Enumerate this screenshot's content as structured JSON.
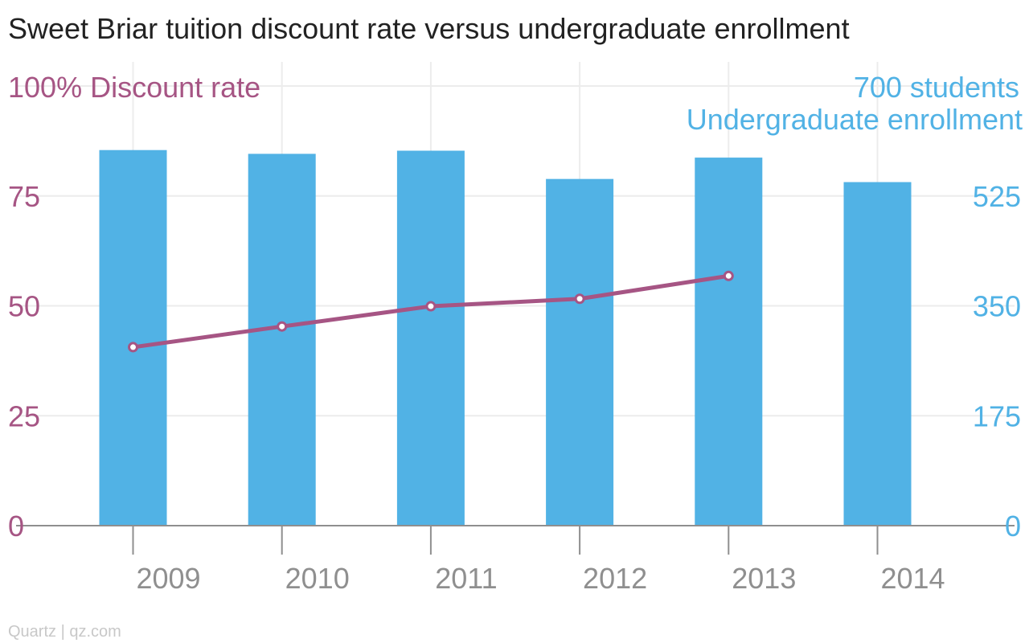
{
  "chart_data": {
    "type": "bar+line",
    "title": "Sweet Briar tuition discount rate versus undergraduate enrollment",
    "categories": [
      "2009",
      "2010",
      "2011",
      "2012",
      "2013",
      "2014"
    ],
    "series": [
      {
        "name": "Undergraduate enrollment",
        "type": "bar",
        "axis": "right",
        "color": "#51b2e5",
        "values": [
          598,
          592,
          597,
          552,
          586,
          547
        ]
      },
      {
        "name": "Discount rate",
        "type": "line",
        "axis": "left",
        "color": "#a65584",
        "values": [
          40.6,
          45.3,
          49.9,
          51.6,
          56.8,
          null
        ]
      }
    ],
    "left_axis": {
      "label": "Discount rate",
      "top_tick": "100%",
      "ticks": [
        "0",
        "25",
        "50",
        "75"
      ],
      "ylim": [
        0,
        100
      ]
    },
    "right_axis": {
      "label": "Undergraduate enrollment",
      "top_tick": "700 students",
      "ticks": [
        "0",
        "175",
        "350",
        "525"
      ],
      "ylim": [
        0,
        700
      ]
    },
    "grid": true,
    "source": "Quartz | qz.com"
  }
}
